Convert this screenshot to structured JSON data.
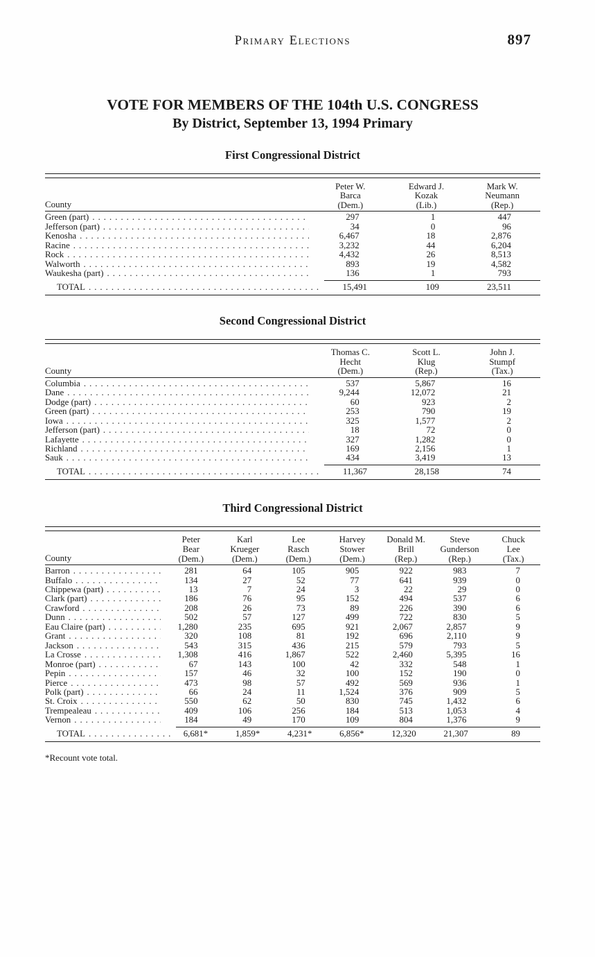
{
  "page": {
    "running_header": "Primary Elections",
    "page_number": "897",
    "title_line1": "VOTE FOR MEMBERS OF THE 104th U.S. CONGRESS",
    "title_line2": "By District, September 13, 1994 Primary",
    "footnote": "*Recount vote total."
  },
  "tables": [
    {
      "section_title": "First Congressional District",
      "county_header": "County",
      "columns": [
        {
          "name_lines": [
            "Peter W.",
            "Barca"
          ],
          "party": "(Dem.)"
        },
        {
          "name_lines": [
            "Edward J.",
            "Kozak"
          ],
          "party": "(Lib.)"
        },
        {
          "name_lines": [
            "Mark W.",
            "Neumann"
          ],
          "party": "(Rep.)"
        }
      ],
      "rows": [
        {
          "county": "Green (part)",
          "values": [
            "297",
            "1",
            "447"
          ]
        },
        {
          "county": "Jefferson (part)",
          "values": [
            "34",
            "0",
            "96"
          ]
        },
        {
          "county": "Kenosha",
          "values": [
            "6,467",
            "18",
            "2,876"
          ]
        },
        {
          "county": "Racine",
          "values": [
            "3,232",
            "44",
            "6,204"
          ]
        },
        {
          "county": "Rock",
          "values": [
            "4,432",
            "26",
            "8,513"
          ]
        },
        {
          "county": "Walworth",
          "values": [
            "893",
            "19",
            "4,582"
          ]
        },
        {
          "county": "Waukesha (part)",
          "values": [
            "136",
            "1",
            "793"
          ]
        }
      ],
      "total_label": "TOTAL",
      "total_values": [
        "15,491",
        "109",
        "23,511"
      ]
    },
    {
      "section_title": "Second Congressional District",
      "county_header": "County",
      "columns": [
        {
          "name_lines": [
            "Thomas C.",
            "Hecht"
          ],
          "party": "(Dem.)"
        },
        {
          "name_lines": [
            "Scott L.",
            "Klug"
          ],
          "party": "(Rep.)"
        },
        {
          "name_lines": [
            "John J.",
            "Stumpf"
          ],
          "party": "(Tax.)"
        }
      ],
      "rows": [
        {
          "county": "Columbia",
          "values": [
            "537",
            "5,867",
            "16"
          ]
        },
        {
          "county": "Dane",
          "values": [
            "9,244",
            "12,072",
            "21"
          ]
        },
        {
          "county": "Dodge (part)",
          "values": [
            "60",
            "923",
            "2"
          ]
        },
        {
          "county": "Green (part)",
          "values": [
            "253",
            "790",
            "19"
          ]
        },
        {
          "county": "Iowa",
          "values": [
            "325",
            "1,577",
            "2"
          ]
        },
        {
          "county": "Jefferson (part)",
          "values": [
            "18",
            "72",
            "0"
          ]
        },
        {
          "county": "Lafayette",
          "values": [
            "327",
            "1,282",
            "0"
          ]
        },
        {
          "county": "Richland",
          "values": [
            "169",
            "2,156",
            "1"
          ]
        },
        {
          "county": "Sauk",
          "values": [
            "434",
            "3,419",
            "13"
          ]
        }
      ],
      "total_label": "TOTAL",
      "total_values": [
        "11,367",
        "28,158",
        "74"
      ]
    },
    {
      "section_title": "Third Congressional District",
      "county_header": "County",
      "columns": [
        {
          "name_lines": [
            "Peter",
            "Bear"
          ],
          "party": "(Dem.)"
        },
        {
          "name_lines": [
            "Karl",
            "Krueger"
          ],
          "party": "(Dem.)"
        },
        {
          "name_lines": [
            "Lee",
            "Rasch"
          ],
          "party": "(Dem.)"
        },
        {
          "name_lines": [
            "Harvey",
            "Stower"
          ],
          "party": "(Dem.)"
        },
        {
          "name_lines": [
            "Donald M.",
            "Brill"
          ],
          "party": "(Rep.)"
        },
        {
          "name_lines": [
            "Steve",
            "Gunderson"
          ],
          "party": "(Rep.)"
        },
        {
          "name_lines": [
            "Chuck",
            "Lee"
          ],
          "party": "(Tax.)"
        }
      ],
      "rows": [
        {
          "county": "Barron",
          "values": [
            "281",
            "64",
            "105",
            "905",
            "922",
            "983",
            "7"
          ]
        },
        {
          "county": "Buffalo",
          "values": [
            "134",
            "27",
            "52",
            "77",
            "641",
            "939",
            "0"
          ]
        },
        {
          "county": "Chippewa (part)",
          "values": [
            "13",
            "7",
            "24",
            "3",
            "22",
            "29",
            "0"
          ]
        },
        {
          "county": "Clark (part)",
          "values": [
            "186",
            "76",
            "95",
            "152",
            "494",
            "537",
            "6"
          ]
        },
        {
          "county": "Crawford",
          "values": [
            "208",
            "26",
            "73",
            "89",
            "226",
            "390",
            "6"
          ]
        },
        {
          "county": "Dunn",
          "values": [
            "502",
            "57",
            "127",
            "499",
            "722",
            "830",
            "5"
          ]
        },
        {
          "county": "Eau Claire (part)",
          "values": [
            "1,280",
            "235",
            "695",
            "921",
            "2,067",
            "2,857",
            "9"
          ]
        },
        {
          "county": "Grant",
          "values": [
            "320",
            "108",
            "81",
            "192",
            "696",
            "2,110",
            "9"
          ]
        },
        {
          "county": "Jackson",
          "values": [
            "543",
            "315",
            "436",
            "215",
            "579",
            "793",
            "5"
          ]
        },
        {
          "county": "La Crosse",
          "values": [
            "1,308",
            "416",
            "1,867",
            "522",
            "2,460",
            "5,395",
            "16"
          ]
        },
        {
          "county": "Monroe (part)",
          "values": [
            "67",
            "143",
            "100",
            "42",
            "332",
            "548",
            "1"
          ]
        },
        {
          "county": "Pepin",
          "values": [
            "157",
            "46",
            "32",
            "100",
            "152",
            "190",
            "0"
          ]
        },
        {
          "county": "Pierce",
          "values": [
            "473",
            "98",
            "57",
            "492",
            "569",
            "936",
            "1"
          ]
        },
        {
          "county": "Polk (part)",
          "values": [
            "66",
            "24",
            "11",
            "1,524",
            "376",
            "909",
            "5"
          ]
        },
        {
          "county": "St. Croix",
          "values": [
            "550",
            "62",
            "50",
            "830",
            "745",
            "1,432",
            "6"
          ]
        },
        {
          "county": "Trempealeau",
          "values": [
            "409",
            "106",
            "256",
            "184",
            "513",
            "1,053",
            "4"
          ]
        },
        {
          "county": "Vernon",
          "values": [
            "184",
            "49",
            "170",
            "109",
            "804",
            "1,376",
            "9"
          ]
        }
      ],
      "total_label": "TOTAL",
      "total_values": [
        "6,681*",
        "1,859*",
        "4,231*",
        "6,856*",
        "12,320",
        "21,307",
        "89"
      ]
    }
  ]
}
